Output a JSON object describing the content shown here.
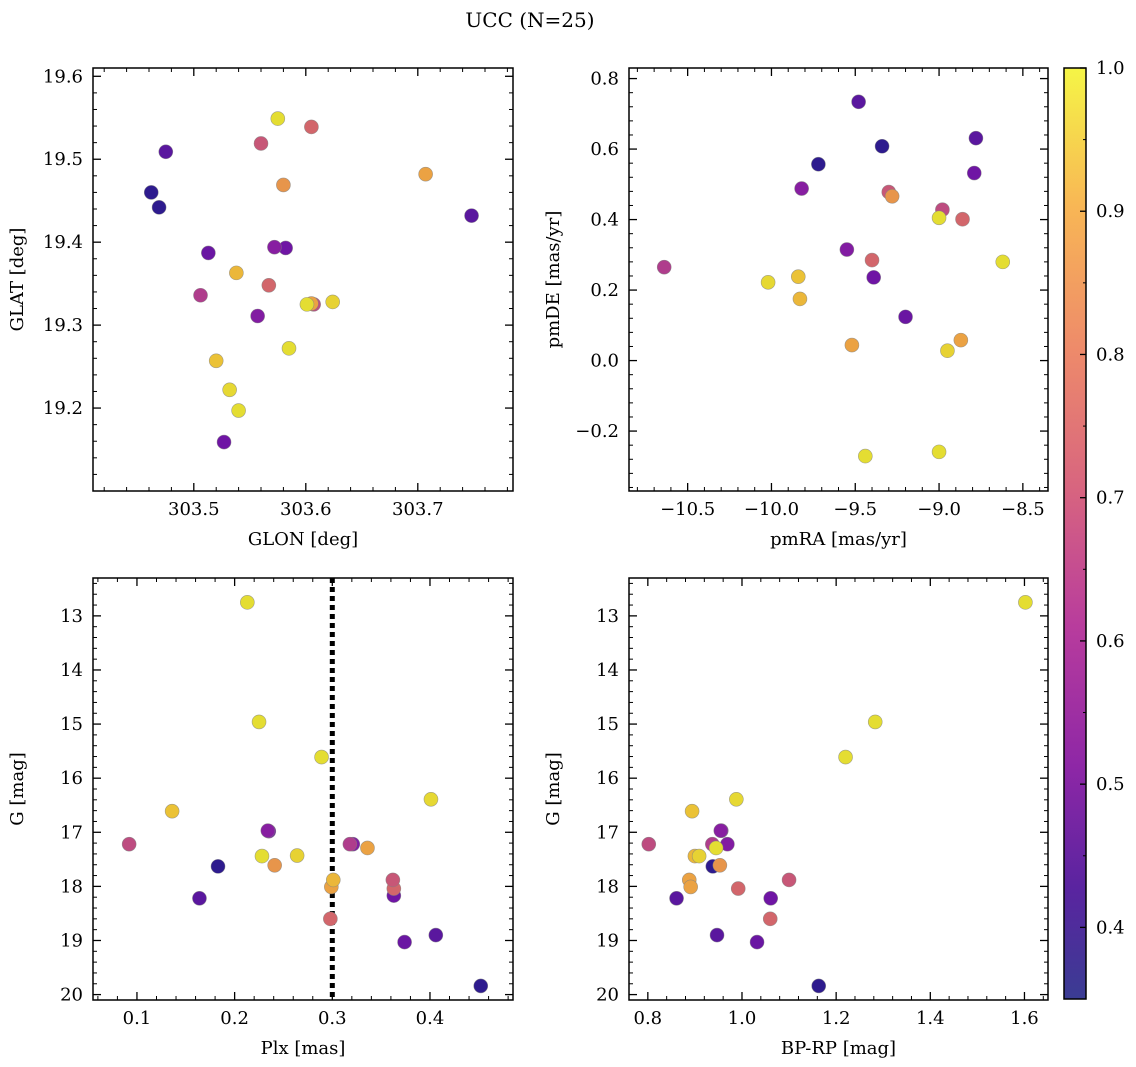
{
  "title": "UCC (N=25)",
  "colorbar": {
    "range": [
      0.35,
      1.0
    ],
    "ticks": [
      0.4,
      0.5,
      0.6,
      0.7,
      0.8,
      0.9,
      1.0
    ],
    "tick_labels": [
      "0.4",
      "0.5",
      "0.6",
      "0.7",
      "0.8",
      "0.9",
      "1.0"
    ]
  },
  "chart_data": [
    {
      "type": "scatter",
      "title": "",
      "xlabel": "GLON [deg]",
      "ylabel": "GLAT [deg]",
      "xlim": [
        303.41,
        303.785
      ],
      "ylim": [
        19.1,
        19.61
      ],
      "y_inverted": false,
      "xticks": [
        303.5,
        303.6,
        303.7
      ],
      "xtick_labels": [
        "303.5",
        "303.6",
        "303.7"
      ],
      "yticks": [
        19.2,
        19.3,
        19.4,
        19.5,
        19.6
      ],
      "ytick_labels": [
        "19.2",
        "19.3",
        "19.4",
        "19.5",
        "19.6"
      ],
      "x": [
        303.469,
        303.462,
        303.475,
        303.748,
        303.513,
        303.527,
        303.582,
        303.557,
        303.572,
        303.605,
        303.567,
        303.607,
        303.56,
        303.506,
        303.54,
        303.58,
        303.605,
        303.538,
        303.585,
        303.575,
        303.52,
        303.601,
        303.624,
        303.707,
        303.532
      ],
      "y": [
        19.442,
        19.46,
        19.509,
        19.432,
        19.387,
        19.159,
        19.393,
        19.311,
        19.394,
        19.539,
        19.348,
        19.325,
        19.519,
        19.336,
        19.197,
        19.469,
        19.326,
        19.363,
        19.272,
        19.549,
        19.257,
        19.325,
        19.328,
        19.482,
        19.222
      ]
    },
    {
      "type": "scatter",
      "title": "",
      "xlabel": "pmRA [mas/yr]",
      "ylabel": "pmDE [mas/yr]",
      "xlim": [
        -10.85,
        -8.35
      ],
      "ylim": [
        -0.37,
        0.83
      ],
      "y_inverted": false,
      "xticks": [
        -10.5,
        -10.0,
        -9.5,
        -9.0,
        -8.5
      ],
      "xtick_labels": [
        "−10.5",
        "−10.0",
        "−9.5",
        "−9.0",
        "−8.5"
      ],
      "yticks": [
        -0.2,
        0.0,
        0.2,
        0.4,
        0.6,
        0.8
      ],
      "ytick_labels": [
        "−0.2",
        "0.0",
        "0.2",
        "0.4",
        "0.6",
        "0.8"
      ],
      "x": [
        -9.72,
        -9.34,
        -9.48,
        -8.78,
        -9.2,
        -9.39,
        -8.79,
        -9.55,
        -9.82,
        -8.86,
        -9.4,
        -8.98,
        -9.3,
        -10.64,
        -9.0,
        -9.28,
        -8.87,
        -9.83,
        -9.0,
        -9.44,
        -9.84,
        -8.62,
        -8.95,
        -9.52,
        -10.02
      ],
      "y": [
        0.557,
        0.608,
        0.734,
        0.631,
        0.124,
        0.236,
        0.532,
        0.315,
        0.488,
        0.401,
        0.285,
        0.428,
        0.478,
        0.265,
        0.405,
        0.466,
        0.058,
        0.175,
        -0.259,
        -0.271,
        0.238,
        0.28,
        0.028,
        0.044,
        0.222
      ]
    },
    {
      "type": "scatter",
      "title": "",
      "xlabel": "Plx [mas]",
      "ylabel": "G [mag]",
      "xlim": [
        0.055,
        0.485
      ],
      "ylim": [
        20.1,
        12.3
      ],
      "y_inverted": true,
      "vline": 0.3,
      "xticks": [
        0.1,
        0.2,
        0.3,
        0.4
      ],
      "xtick_labels": [
        "0.1",
        "0.2",
        "0.3",
        "0.4"
      ],
      "yticks": [
        13,
        14,
        15,
        16,
        17,
        18,
        19,
        20
      ],
      "ytick_labels": [
        "13",
        "14",
        "15",
        "16",
        "17",
        "18",
        "19",
        "20"
      ],
      "x": [
        0.452,
        0.183,
        0.406,
        0.164,
        0.374,
        0.363,
        0.235,
        0.321,
        0.234,
        0.298,
        0.363,
        0.092,
        0.362,
        0.318,
        0.228,
        0.241,
        0.299,
        0.301,
        0.213,
        0.225,
        0.136,
        0.289,
        0.264,
        0.336,
        0.401
      ],
      "y": [
        19.84,
        17.63,
        18.9,
        18.22,
        19.03,
        18.17,
        16.98,
        17.22,
        16.97,
        18.6,
        18.04,
        17.22,
        17.88,
        17.22,
        17.44,
        17.61,
        18.01,
        17.88,
        12.75,
        14.96,
        16.61,
        15.61,
        17.43,
        17.29,
        16.39
      ]
    },
    {
      "type": "scatter",
      "title": "",
      "xlabel": "BP-RP [mag]",
      "ylabel": "G [mag]",
      "xlim": [
        0.76,
        1.65
      ],
      "ylim": [
        20.1,
        12.3
      ],
      "y_inverted": true,
      "xticks": [
        0.8,
        1.0,
        1.2,
        1.4,
        1.6
      ],
      "xtick_labels": [
        "0.8",
        "1.0",
        "1.2",
        "1.4",
        "1.6"
      ],
      "yticks": [
        13,
        14,
        15,
        16,
        17,
        18,
        19,
        20
      ],
      "ytick_labels": [
        "13",
        "14",
        "15",
        "16",
        "17",
        "18",
        "19",
        "20"
      ],
      "x": [
        1.163,
        0.938,
        0.947,
        0.861,
        1.032,
        1.061,
        0.956,
        0.969,
        0.955,
        1.06,
        0.992,
        0.802,
        1.1,
        0.937,
        0.945,
        0.953,
        0.888,
        0.9,
        1.602,
        1.283,
        0.894,
        1.22,
        0.909,
        0.891,
        0.988
      ],
      "y": [
        19.84,
        17.63,
        18.9,
        18.22,
        19.03,
        18.22,
        16.97,
        17.22,
        16.97,
        18.6,
        18.04,
        17.22,
        17.88,
        17.22,
        17.29,
        17.61,
        17.88,
        17.44,
        12.75,
        14.96,
        16.61,
        15.61,
        17.44,
        18.01,
        16.39
      ]
    }
  ],
  "membership_probability": [
    0.37,
    0.37,
    0.44,
    0.44,
    0.47,
    0.48,
    0.48,
    0.52,
    0.53,
    0.73,
    0.73,
    0.66,
    0.69,
    0.62,
    0.98,
    0.84,
    0.87,
    0.91,
    0.98,
    0.98,
    0.93,
    0.98,
    0.96,
    0.87,
    0.97
  ]
}
